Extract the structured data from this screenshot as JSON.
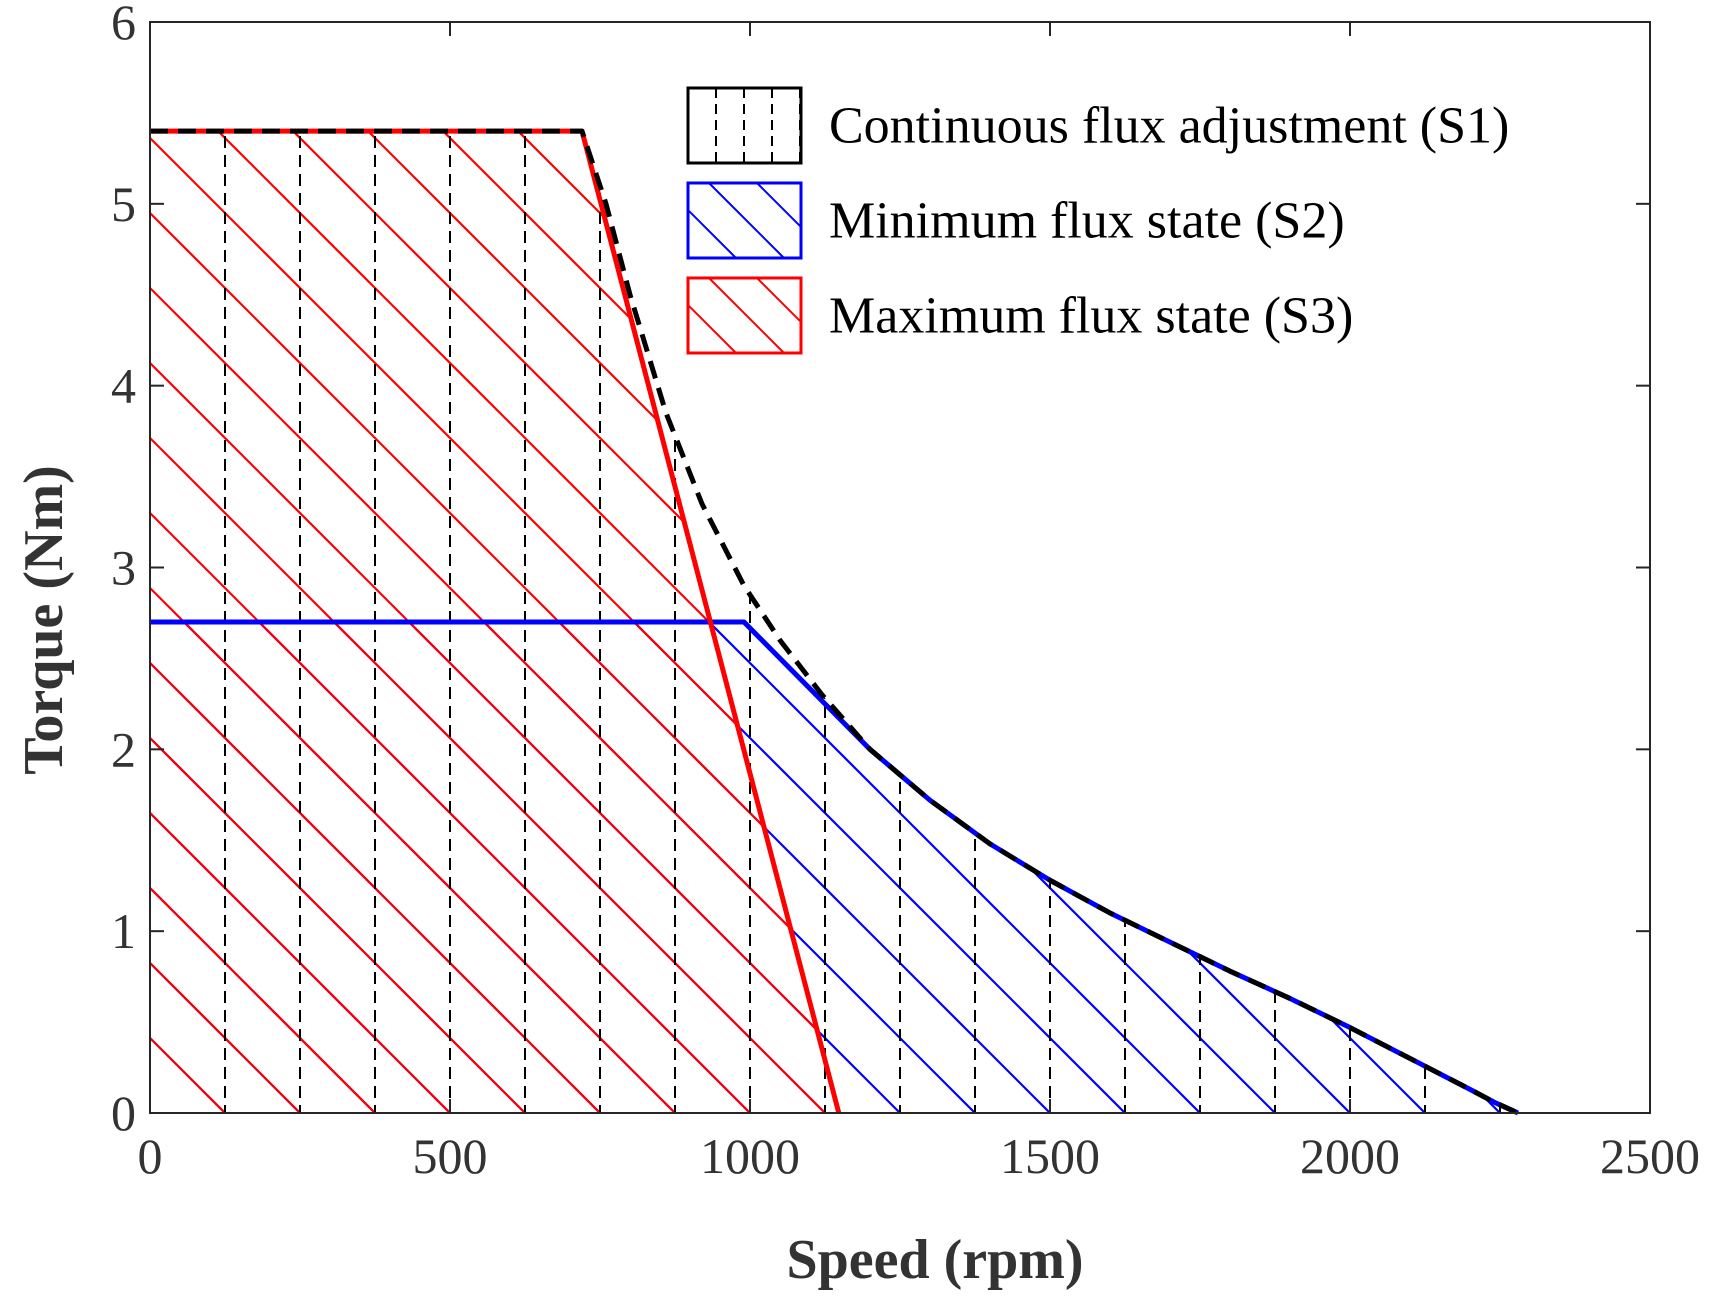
{
  "chart_data": {
    "type": "line",
    "title": "",
    "xlabel": "Speed (rpm)",
    "ylabel": "Torque (Nm)",
    "xlim": [
      0,
      2500
    ],
    "ylim": [
      0,
      6
    ],
    "xticks": [
      0,
      500,
      1000,
      1500,
      2000,
      2500
    ],
    "yticks": [
      0,
      1,
      2,
      3,
      4,
      5,
      6
    ],
    "x_tick_labels": [
      "0",
      "500",
      "1000",
      "1500",
      "2000",
      "2500"
    ],
    "y_tick_labels": [
      "0",
      "1",
      "2",
      "3",
      "4",
      "5",
      "6"
    ],
    "grid": false,
    "legend_position": "top-right",
    "series": [
      {
        "name": "Continuous flux adjustment (S1)",
        "color": "#000000",
        "line_style": "dashed",
        "hatch": "vertical-dashed",
        "x": [
          0,
          720,
          760,
          800,
          860,
          920,
          990,
          1050,
          1120,
          1200,
          1300,
          1400,
          1500,
          1600,
          1700,
          1800,
          1900,
          2000,
          2100,
          2200,
          2240,
          2260,
          2280
        ],
        "y": [
          5.4,
          5.4,
          5.0,
          4.5,
          3.85,
          3.35,
          2.9,
          2.6,
          2.3,
          2.0,
          1.72,
          1.48,
          1.28,
          1.1,
          0.94,
          0.78,
          0.63,
          0.47,
          0.3,
          0.13,
          0.06,
          0.03,
          0.0
        ]
      },
      {
        "name": "Minimum flux state (S2)",
        "color": "#0000ff",
        "line_style": "solid",
        "hatch": "backslash",
        "x": [
          0,
          990,
          1200,
          1300,
          1400,
          1500,
          1600,
          1700,
          1800,
          1900,
          2000,
          2100,
          2200,
          2240,
          2260,
          2280
        ],
        "y": [
          2.7,
          2.7,
          2.0,
          1.72,
          1.48,
          1.28,
          1.1,
          0.94,
          0.78,
          0.63,
          0.47,
          0.3,
          0.13,
          0.06,
          0.03,
          0.0
        ]
      },
      {
        "name": "Maximum flux state (S3)",
        "color": "#ff0000",
        "line_style": "solid",
        "hatch": "forward-slash",
        "x": [
          0,
          720,
          1148
        ],
        "y": [
          5.4,
          5.4,
          0.0
        ]
      }
    ]
  }
}
